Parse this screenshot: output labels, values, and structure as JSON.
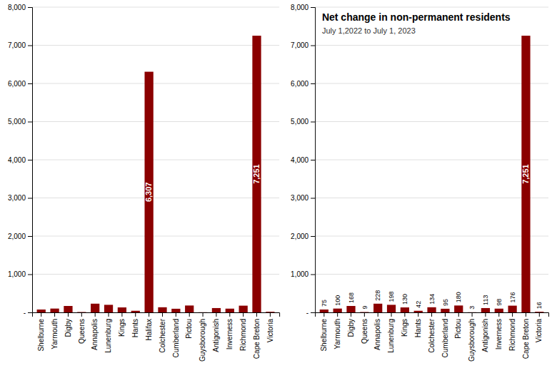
{
  "chart_data": [
    {
      "type": "bar",
      "categories": [
        "Shelburne",
        "Yarmouth",
        "Digby",
        "Queens",
        "Annapolis",
        "Lunenburg",
        "Kings",
        "Hants",
        "Halifax",
        "Colchester",
        "Cumberland",
        "Pictou",
        "Guysborough",
        "Antigonish",
        "Inverness",
        "Richmond",
        "Cape Breton",
        "Victoria"
      ],
      "values": [
        75,
        100,
        168,
        9,
        228,
        198,
        130,
        42,
        6307,
        134,
        95,
        180,
        3,
        113,
        98,
        176,
        7251,
        16
      ],
      "value_labels": [
        null,
        null,
        null,
        null,
        null,
        null,
        null,
        null,
        "6,307",
        null,
        null,
        null,
        null,
        null,
        null,
        null,
        "7,251",
        null
      ],
      "data_labels": true,
      "color": "#8B0000",
      "ylim": [
        0,
        8000
      ],
      "yticks": [
        {
          "value": 0,
          "label": "-"
        },
        {
          "value": 1000,
          "label": "1,000"
        },
        {
          "value": 2000,
          "label": "2,000"
        },
        {
          "value": 3000,
          "label": "3,000"
        },
        {
          "value": 4000,
          "label": "4,000"
        },
        {
          "value": 5000,
          "label": "5,000"
        },
        {
          "value": 6000,
          "label": "6,000"
        },
        {
          "value": 7000,
          "label": "7,000"
        },
        {
          "value": 8000,
          "label": "8,000"
        }
      ],
      "grid": true
    },
    {
      "type": "bar",
      "title": "Net change in non-permanent residents",
      "subtitle": "July 1,2022 to July 1, 2023",
      "categories": [
        "Shelburne",
        "Yarmouth",
        "Digby",
        "Queens",
        "Annapolis",
        "Lunenburg",
        "Kings",
        "Hants",
        "Colchester",
        "Cumberland",
        "Pictou",
        "Guysborough",
        "Antigonish",
        "Inverness",
        "Richmond",
        "Cape Breton",
        "Victoria"
      ],
      "values": [
        75,
        100,
        168,
        9,
        228,
        198,
        130,
        42,
        134,
        95,
        180,
        3,
        113,
        98,
        176,
        7251,
        16
      ],
      "value_labels": [
        "75",
        "100",
        "168",
        "9",
        "228",
        "198",
        "130",
        "42",
        "134",
        "95",
        "180",
        "3",
        "113",
        "98",
        "176",
        "7,251",
        "16"
      ],
      "data_labels": true,
      "color": "#8B0000",
      "ylim": [
        0,
        8000
      ],
      "yticks": [
        {
          "value": 0,
          "label": "-"
        },
        {
          "value": 1000,
          "label": "1,000"
        },
        {
          "value": 2000,
          "label": "2,000"
        },
        {
          "value": 3000,
          "label": "3,000"
        },
        {
          "value": 4000,
          "label": "4,000"
        },
        {
          "value": 5000,
          "label": "5,000"
        },
        {
          "value": 6000,
          "label": "6,000"
        },
        {
          "value": 7000,
          "label": "7,000"
        },
        {
          "value": 8000,
          "label": "8,000"
        }
      ],
      "grid": true
    }
  ]
}
